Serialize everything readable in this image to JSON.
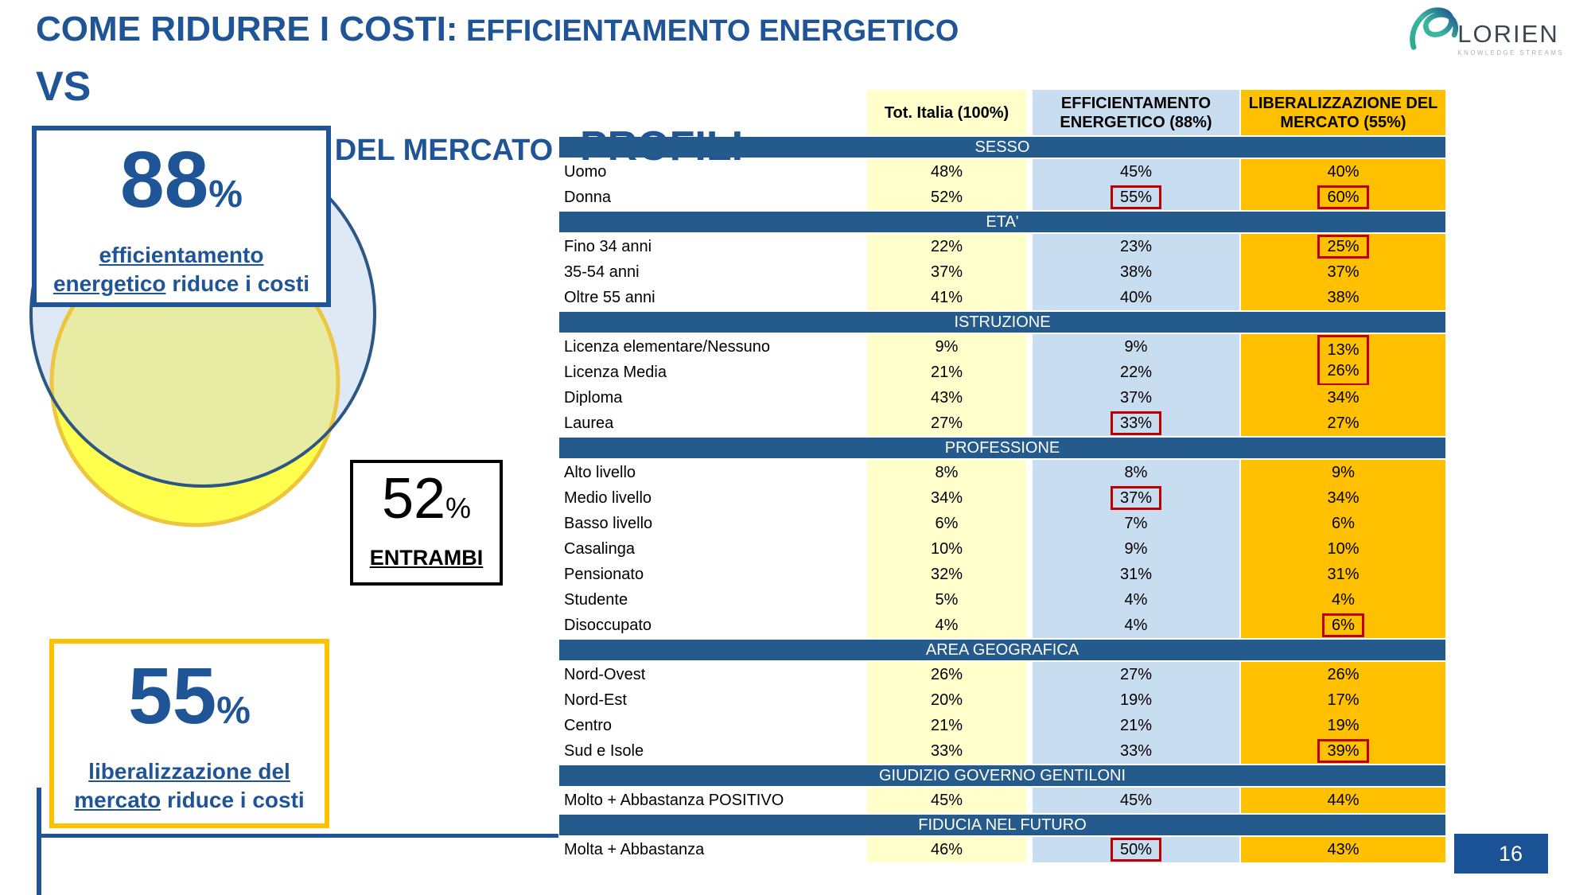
{
  "slide": {
    "title": {
      "part1": "COME RIDURRE I COSTI:",
      "part2": " EFFICIENTAMENTO ENERGETICO ",
      "part3": "VS",
      "part4": "LIBERALIZZAZIONE DEL MERCATO - ",
      "part5": "PROFILI"
    },
    "page_number": "16"
  },
  "logo": {
    "name": "LORIEN",
    "tagline": "KNOWLEDGE STREAMS"
  },
  "venn": {
    "box88": {
      "value": "88",
      "pct": "%",
      "underline_line1": "efficientamento",
      "underline_word2": "energetico",
      "rest": " riduce i costi"
    },
    "box52": {
      "value": "52",
      "pct": "%",
      "label": "ENTRAMBI"
    },
    "box55": {
      "value": "55",
      "pct": "%",
      "underline_line1": "liberalizzazione del",
      "underline_word2": "mercato",
      "rest": " riduce i costi"
    }
  },
  "colors": {
    "accent_navy": "#1F5597",
    "band_navy": "#255A8C",
    "col_tot_italia": "#FFFFCC",
    "col_efficientamento": "#C9DDF0",
    "col_liberalizzazione": "#FFC000",
    "highlight_red": "#C00000",
    "venn_blue_fill": "#DEE9F5",
    "venn_blue_stroke": "#2B5784",
    "venn_yellow_fill": "#FFFF4D",
    "venn_yellow_stroke": "#EDC63F",
    "venn_overlap_fill": "#E7EBA3",
    "pagebox_blue": "#1B5295"
  },
  "table": {
    "columns": [
      "Tot. Italia (100%)",
      "EFFICIENTAMENTO ENERGETICO (88%)",
      "LIBERALIZZAZIONE DEL MERCATO (55%)"
    ],
    "sections": [
      {
        "name": "SESSO",
        "rows": [
          {
            "label": "Uomo",
            "cells": [
              "48%",
              "45%",
              "40%"
            ],
            "hl": [
              "",
              "",
              ""
            ]
          },
          {
            "label": "Donna",
            "cells": [
              "52%",
              "55%",
              "60%"
            ],
            "hl": [
              "",
              "box",
              "box"
            ]
          }
        ]
      },
      {
        "name": "ETA'",
        "rows": [
          {
            "label": "Fino 34 anni",
            "cells": [
              "22%",
              "23%",
              "25%"
            ],
            "hl": [
              "",
              "",
              "box"
            ]
          },
          {
            "label": "35-54 anni",
            "cells": [
              "37%",
              "38%",
              "37%"
            ],
            "hl": [
              "",
              "",
              ""
            ]
          },
          {
            "label": "Oltre 55 anni",
            "cells": [
              "41%",
              "40%",
              "38%"
            ],
            "hl": [
              "",
              "",
              ""
            ]
          }
        ]
      },
      {
        "name": "ISTRUZIONE",
        "rows": [
          {
            "label": "Licenza elementare/Nessuno",
            "cells": [
              "9%",
              "9%",
              "13%"
            ],
            "hl": [
              "",
              "",
              "mt"
            ]
          },
          {
            "label": "Licenza Media",
            "cells": [
              "21%",
              "22%",
              "26%"
            ],
            "hl": [
              "",
              "",
              "mb"
            ]
          },
          {
            "label": "Diploma",
            "cells": [
              "43%",
              "37%",
              "34%"
            ],
            "hl": [
              "",
              "",
              ""
            ]
          },
          {
            "label": "Laurea",
            "cells": [
              "27%",
              "33%",
              "27%"
            ],
            "hl": [
              "",
              "box",
              ""
            ]
          }
        ]
      },
      {
        "name": "PROFESSIONE",
        "rows": [
          {
            "label": "Alto livello",
            "cells": [
              "8%",
              "8%",
              "9%"
            ],
            "hl": [
              "",
              "",
              ""
            ]
          },
          {
            "label": "Medio livello",
            "cells": [
              "34%",
              "37%",
              "34%"
            ],
            "hl": [
              "",
              "box",
              ""
            ]
          },
          {
            "label": "Basso livello",
            "cells": [
              "6%",
              "7%",
              "6%"
            ],
            "hl": [
              "",
              "",
              ""
            ]
          },
          {
            "label": "Casalinga",
            "cells": [
              "10%",
              "9%",
              "10%"
            ],
            "hl": [
              "",
              "",
              ""
            ]
          },
          {
            "label": "Pensionato",
            "cells": [
              "32%",
              "31%",
              "31%"
            ],
            "hl": [
              "",
              "",
              ""
            ]
          },
          {
            "label": "Studente",
            "cells": [
              "5%",
              "4%",
              "4%"
            ],
            "hl": [
              "",
              "",
              ""
            ]
          },
          {
            "label": "Disoccupato",
            "cells": [
              "4%",
              "4%",
              "6%"
            ],
            "hl": [
              "",
              "",
              "box"
            ]
          }
        ]
      },
      {
        "name": "AREA GEOGRAFICA",
        "rows": [
          {
            "label": "Nord-Ovest",
            "cells": [
              "26%",
              "27%",
              "26%"
            ],
            "hl": [
              "",
              "",
              ""
            ]
          },
          {
            "label": "Nord-Est",
            "cells": [
              "20%",
              "19%",
              "17%"
            ],
            "hl": [
              "",
              "",
              ""
            ]
          },
          {
            "label": "Centro",
            "cells": [
              "21%",
              "21%",
              "19%"
            ],
            "hl": [
              "",
              "",
              ""
            ]
          },
          {
            "label": "Sud e Isole",
            "cells": [
              "33%",
              "33%",
              "39%"
            ],
            "hl": [
              "",
              "",
              "box"
            ]
          }
        ]
      },
      {
        "name": "GIUDIZIO GOVERNO GENTILONI",
        "rows": [
          {
            "label": "Molto + Abbastanza POSITIVO",
            "cells": [
              "45%",
              "45%",
              "44%"
            ],
            "hl": [
              "",
              "",
              ""
            ]
          }
        ]
      },
      {
        "name": "FIDUCIA NEL FUTURO",
        "rows": [
          {
            "label": "Molta + Abbastanza",
            "cells": [
              "46%",
              "50%",
              "43%"
            ],
            "hl": [
              "",
              "box",
              ""
            ]
          }
        ]
      }
    ]
  }
}
